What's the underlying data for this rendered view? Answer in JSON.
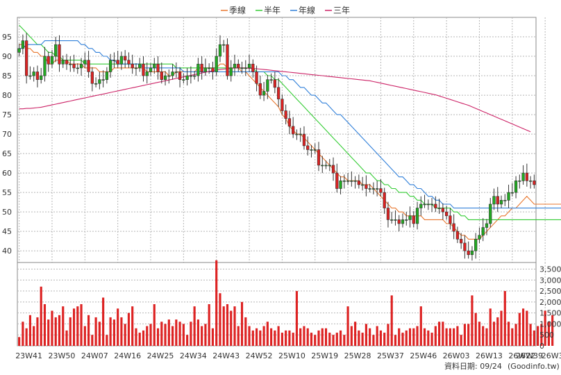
{
  "chart_data": [
    {
      "type": "candlestick",
      "panel": "price",
      "legend": [
        {
          "name": "季線",
          "color": "#e8772e"
        },
        {
          "name": "半年",
          "color": "#33cc33"
        },
        {
          "name": "年線",
          "color": "#2f7fd9"
        },
        {
          "name": "三年",
          "color": "#cc2266"
        }
      ],
      "y_ticks": [
        40,
        45,
        50,
        55,
        60,
        65,
        70,
        75,
        80,
        85,
        90,
        95
      ],
      "ylim": [
        37,
        100
      ],
      "x_ticks": [
        {
          "label": "23W41",
          "i": 0
        },
        {
          "label": "23W50",
          "i": 9
        },
        {
          "label": "24W07",
          "i": 18
        },
        {
          "label": "24W16",
          "i": 27
        },
        {
          "label": "24W25",
          "i": 36
        },
        {
          "label": "24W34",
          "i": 45
        },
        {
          "label": "24W43",
          "i": 54
        },
        {
          "label": "24W52",
          "i": 63
        },
        {
          "label": "25W10",
          "i": 72
        },
        {
          "label": "25W19",
          "i": 81
        },
        {
          "label": "25W28",
          "i": 90
        },
        {
          "label": "25W37",
          "i": 99
        },
        {
          "label": "25W46",
          "i": 108
        },
        {
          "label": "26W03",
          "i": 117
        },
        {
          "label": "26W13",
          "i": 126
        },
        {
          "label": "26W22",
          "i": 135
        },
        {
          "label": "26W31",
          "i": 144
        },
        {
          "label": "26W39",
          "i": 152
        }
      ],
      "color_up": "#22aa22",
      "color_down": "#dd2222",
      "close": [
        92,
        94,
        85,
        85,
        86,
        84,
        85,
        90,
        88,
        90,
        93,
        88,
        89,
        88,
        88,
        87,
        87,
        88,
        89,
        86,
        83,
        83,
        84,
        84,
        86,
        89,
        89,
        88,
        90,
        89,
        88,
        87,
        87,
        88,
        85,
        86,
        87,
        88,
        86,
        84,
        85,
        85,
        86,
        86,
        84,
        84,
        85,
        85,
        85,
        88,
        86,
        87,
        87,
        86,
        90,
        93,
        93,
        85,
        87,
        88,
        87,
        87,
        87,
        88,
        86,
        83,
        80,
        81,
        84,
        84,
        82,
        79,
        76,
        74,
        72,
        70,
        70,
        70,
        67,
        66,
        66,
        66,
        62,
        62,
        62,
        62,
        60,
        56,
        58,
        58,
        58,
        58,
        58,
        57,
        57,
        56,
        56,
        56,
        56,
        55,
        51,
        48,
        48,
        48,
        47,
        48,
        48,
        49,
        47,
        51,
        52,
        52,
        52,
        52,
        51,
        51,
        50,
        49,
        47,
        45,
        43,
        42,
        40,
        39,
        40,
        43,
        44,
        46,
        47,
        52,
        54,
        52,
        53,
        53,
        55,
        55,
        58,
        58,
        60,
        58,
        58,
        57
      ],
      "series": [
        {
          "name": "季線",
          "values": [
            93,
            93,
            92,
            92,
            91,
            91,
            90,
            90,
            88,
            88,
            89,
            89,
            89,
            89,
            88,
            88,
            88,
            88,
            87,
            87,
            87,
            87,
            86,
            86,
            86,
            86,
            87,
            87,
            87,
            87,
            87,
            87,
            87,
            87,
            87,
            86,
            86,
            86,
            86,
            86,
            86,
            85,
            85,
            86,
            86,
            86,
            86,
            86,
            86,
            87,
            87,
            87,
            87,
            87,
            87,
            88,
            88,
            87,
            87,
            87,
            87,
            86,
            86,
            85,
            84,
            83,
            82,
            81,
            80,
            79,
            78,
            77,
            75,
            74,
            72,
            71,
            70,
            70,
            69,
            68,
            67,
            66,
            65,
            64,
            63,
            62,
            61,
            60,
            59,
            59,
            58,
            58,
            58,
            58,
            57,
            57,
            57,
            56,
            55,
            54,
            53,
            52,
            51,
            51,
            50,
            50,
            49,
            49,
            49,
            49,
            49,
            48,
            48,
            48,
            48,
            48,
            48,
            47,
            47,
            46,
            45,
            44,
            44,
            43,
            43,
            43,
            43,
            44,
            45,
            46,
            47,
            48,
            49,
            49,
            50,
            51,
            51,
            52,
            53,
            54,
            53,
            52,
            52,
            52,
            52,
            52,
            52,
            52,
            52,
            52,
            52,
            52,
            52
          ]
        },
        {
          "name": "半年",
          "values": [
            98,
            97,
            96,
            95,
            94,
            93,
            93,
            92,
            91,
            91,
            90,
            90,
            89,
            89,
            89,
            89,
            89,
            89,
            88,
            88,
            88,
            88,
            88,
            88,
            88,
            88,
            88,
            88,
            88,
            88,
            88,
            88,
            88,
            88,
            88,
            88,
            88,
            88,
            88,
            88,
            88,
            88,
            88,
            87,
            87,
            87,
            87,
            87,
            87,
            87,
            87,
            87,
            87,
            87,
            87,
            87,
            87,
            87,
            87,
            87,
            87,
            87,
            87,
            87,
            87,
            86,
            86,
            86,
            85,
            85,
            84,
            84,
            83,
            82,
            81,
            80,
            79,
            78,
            77,
            76,
            75,
            74,
            73,
            72,
            71,
            70,
            69,
            68,
            67,
            66,
            65,
            64,
            63,
            62,
            61,
            60,
            60,
            59,
            58,
            58,
            57,
            57,
            56,
            56,
            55,
            55,
            55,
            54,
            54,
            53,
            53,
            52,
            52,
            52,
            51,
            51,
            51,
            51,
            51,
            50,
            50,
            49,
            49,
            48,
            48,
            48,
            48,
            48,
            48,
            48,
            48,
            48,
            48,
            48,
            48,
            48,
            48,
            48,
            48,
            48,
            48,
            48,
            48,
            48,
            48,
            48,
            48,
            48,
            48,
            48,
            48,
            48,
            48
          ]
        },
        {
          "name": "年線",
          "values": [
            92,
            92,
            93,
            93,
            93,
            93,
            93,
            94,
            94,
            94,
            94,
            94,
            94,
            94,
            94,
            94,
            94,
            93,
            93,
            92,
            92,
            91,
            91,
            90,
            90,
            89,
            89,
            88,
            88,
            88,
            88,
            88,
            88,
            88,
            87,
            87,
            87,
            87,
            87,
            87,
            87,
            87,
            87,
            87,
            87,
            86,
            86,
            86,
            86,
            86,
            86,
            86,
            86,
            86,
            86,
            86,
            86,
            86,
            86,
            86,
            86,
            86,
            86,
            86,
            86,
            86,
            86,
            86,
            86,
            86,
            86,
            86,
            85,
            85,
            84,
            84,
            83,
            82,
            82,
            81,
            80,
            80,
            79,
            78,
            78,
            77,
            76,
            75,
            75,
            74,
            73,
            72,
            71,
            70,
            69,
            68,
            67,
            66,
            65,
            64,
            63,
            62,
            61,
            60,
            59,
            59,
            58,
            57,
            57,
            56,
            56,
            55,
            54,
            54,
            53,
            53,
            52,
            52,
            52,
            51,
            51,
            51,
            51,
            51,
            51,
            51,
            51,
            51,
            51,
            51,
            51,
            51,
            51,
            51,
            51,
            51,
            51,
            51,
            51,
            51,
            51,
            51,
            51,
            51,
            51,
            51,
            51,
            51,
            51,
            51,
            51,
            51,
            50
          ]
        },
        {
          "name": "三年",
          "values": [
            76.5,
            76.5,
            76.6,
            76.6,
            76.7,
            76.8,
            76.9,
            77.1,
            77.3,
            77.5,
            77.7,
            77.9,
            78.1,
            78.3,
            78.5,
            78.7,
            78.9,
            79.1,
            79.3,
            79.5,
            79.7,
            79.9,
            80.1,
            80.3,
            80.5,
            80.7,
            80.9,
            81.1,
            81.3,
            81.5,
            81.7,
            81.9,
            82.1,
            82.3,
            82.5,
            82.7,
            82.9,
            83.1,
            83.3,
            83.5,
            83.7,
            83.9,
            84.1,
            84.3,
            84.5,
            84.7,
            84.9,
            85.1,
            85.3,
            85.5,
            85.7,
            85.9,
            86.1,
            86.3,
            86.5,
            86.6,
            86.7,
            86.8,
            86.9,
            87.0,
            87.0,
            87.0,
            87.0,
            86.9,
            86.9,
            86.8,
            86.7,
            86.6,
            86.5,
            86.4,
            86.3,
            86.2,
            86.1,
            86.0,
            85.9,
            85.8,
            85.7,
            85.6,
            85.5,
            85.4,
            85.3,
            85.2,
            85.1,
            85.0,
            84.9,
            84.8,
            84.7,
            84.6,
            84.5,
            84.4,
            84.3,
            84.2,
            84.1,
            84.0,
            83.9,
            83.8,
            83.7,
            83.5,
            83.3,
            83.1,
            82.9,
            82.7,
            82.5,
            82.3,
            82.1,
            81.9,
            81.7,
            81.5,
            81.3,
            81.1,
            80.9,
            80.7,
            80.5,
            80.3,
            80.1,
            79.8,
            79.5,
            79.2,
            78.9,
            78.6,
            78.3,
            78.0,
            77.7,
            77.4,
            77.0,
            76.6,
            76.2,
            75.8,
            75.4,
            75.0,
            74.6,
            74.2,
            73.8,
            73.4,
            73.0,
            72.6,
            72.2,
            71.8,
            71.4,
            71.0,
            70.6
          ]
        }
      ]
    },
    {
      "type": "bar",
      "panel": "volume",
      "y_ticks": [
        0,
        500,
        1000,
        1500,
        2000,
        2500,
        3000,
        3500
      ],
      "ylim": [
        0,
        3800
      ],
      "color": "#dd2222",
      "values": [
        400,
        1100,
        800,
        1400,
        900,
        1300,
        2700,
        1900,
        1200,
        1600,
        1300,
        1400,
        1800,
        700,
        1300,
        1700,
        1800,
        1900,
        900,
        1400,
        500,
        1300,
        1100,
        2200,
        500,
        1300,
        1200,
        1700,
        1300,
        1000,
        1500,
        1800,
        800,
        600,
        700,
        900,
        1000,
        1900,
        800,
        1100,
        1000,
        1200,
        900,
        1200,
        1100,
        1000,
        500,
        1100,
        1800,
        1200,
        900,
        1000,
        1900,
        800,
        3900,
        2400,
        1800,
        1900,
        1600,
        1800,
        900,
        2000,
        1300,
        900,
        700,
        800,
        700,
        900,
        1100,
        800,
        700,
        900,
        600,
        700,
        700,
        600,
        2500,
        800,
        900,
        800,
        600,
        500,
        700,
        800,
        800,
        600,
        500,
        600,
        700,
        500,
        1800,
        900,
        1100,
        700,
        600,
        1000,
        800,
        500,
        900,
        700,
        600,
        1000,
        2300,
        500,
        800,
        600,
        700,
        800,
        800,
        900,
        1800,
        800,
        700,
        600,
        900,
        1100,
        1100,
        800,
        800,
        800,
        900,
        500,
        1000,
        1000,
        2300,
        1500,
        1100,
        900,
        800,
        1700,
        1100,
        1300,
        1600,
        2500,
        1100,
        800,
        1000,
        1500,
        1700,
        1600,
        1000,
        700,
        900,
        1000,
        1600,
        1100,
        1400
      ]
    }
  ],
  "footer": {
    "date_text": "資料日期: 09/24",
    "site_text": "(Goodinfo.tw)"
  }
}
